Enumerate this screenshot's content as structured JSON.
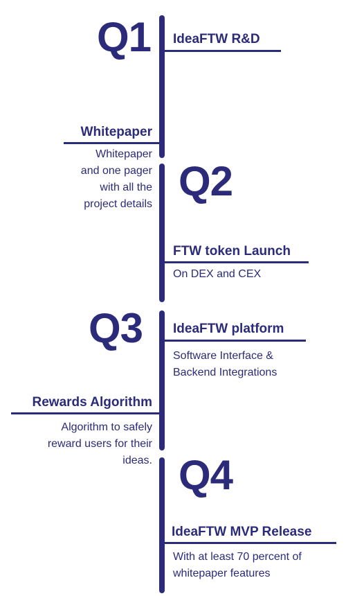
{
  "colors": {
    "accent": "#2b2b7a",
    "background": "#ffffff"
  },
  "quarters": {
    "q1": "Q1",
    "q2": "Q2",
    "q3": "Q3",
    "q4": "Q4"
  },
  "milestones": {
    "rnd": {
      "title": "IdeaFTW R&D"
    },
    "whitepaper": {
      "title": "Whitepaper",
      "desc": [
        "Whitepaper",
        "and one pager",
        "with all the",
        "project details"
      ]
    },
    "token": {
      "title": "FTW token Launch",
      "desc": [
        "On DEX and CEX"
      ]
    },
    "platform": {
      "title": "IdeaFTW platform",
      "desc": [
        "Software Interface &",
        "Backend Integrations"
      ]
    },
    "rewards": {
      "title": "Rewards Algorithm",
      "desc": [
        "Algorithm to safely",
        "reward users for their",
        "ideas."
      ]
    },
    "mvp": {
      "title": "IdeaFTW MVP Release",
      "desc": [
        "With at least 70 percent of",
        "whitepaper features"
      ]
    }
  }
}
